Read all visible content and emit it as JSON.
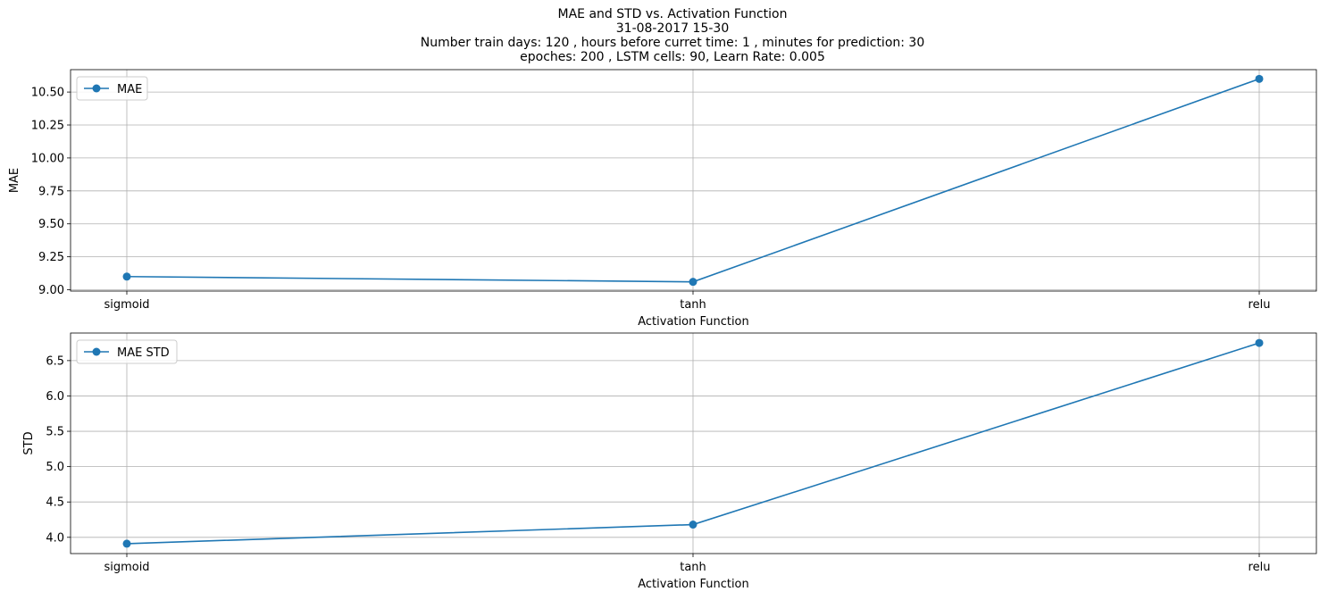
{
  "figure": {
    "title_lines": [
      "MAE and STD vs. Activation Function",
      "31-08-2017 15-30",
      "Number train days: 120 , hours before curret time: 1 , minutes for prediction: 30",
      "epoches: 200 , LSTM cells: 90, Learn Rate: 0.005"
    ]
  },
  "chart_data": [
    {
      "type": "line",
      "categories": [
        "sigmoid",
        "tanh",
        "relu"
      ],
      "series": [
        {
          "name": "MAE",
          "values": [
            9.1,
            9.06,
            10.6
          ],
          "color": "#1f77b4",
          "marker": "circle"
        }
      ],
      "xlabel": "Activation Function",
      "ylabel": "MAE",
      "ylim": [
        8.99,
        10.67
      ],
      "yticks": [
        9.0,
        9.25,
        9.5,
        9.75,
        10.0,
        10.25,
        10.5
      ],
      "ytick_labels": [
        "9.00",
        "9.25",
        "9.50",
        "9.75",
        "10.00",
        "10.25",
        "10.50"
      ],
      "grid": true,
      "legend_position": "upper-left"
    },
    {
      "type": "line",
      "categories": [
        "sigmoid",
        "tanh",
        "relu"
      ],
      "series": [
        {
          "name": "MAE STD",
          "values": [
            3.91,
            4.18,
            6.75
          ],
          "color": "#1f77b4",
          "marker": "circle"
        }
      ],
      "xlabel": "Activation Function",
      "ylabel": "STD",
      "ylim": [
        3.77,
        6.89
      ],
      "yticks": [
        4.0,
        4.5,
        5.0,
        5.5,
        6.0,
        6.5
      ],
      "ytick_labels": [
        "4.0",
        "4.5",
        "5.0",
        "5.5",
        "6.0",
        "6.5"
      ],
      "grid": true,
      "legend_position": "upper-left"
    }
  ]
}
